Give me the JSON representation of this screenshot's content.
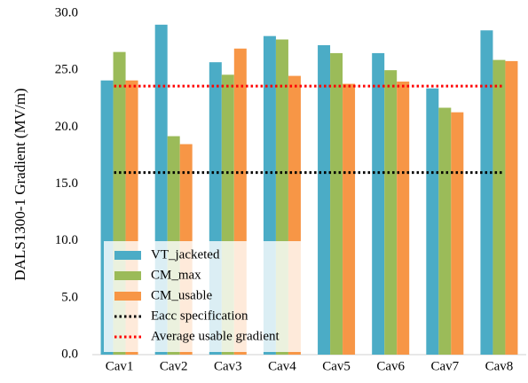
{
  "chart_data": {
    "type": "bar",
    "y_label": "DALS1300-1 Gradient (MV/m)",
    "categories": [
      "Cav1",
      "Cav2",
      "Cav3",
      "Cav4",
      "Cav5",
      "Cav6",
      "Cav7",
      "Cav8"
    ],
    "series": [
      {
        "name": "VT_jacketed",
        "color": "#4bacc6",
        "values": [
          24.1,
          29.0,
          25.7,
          28.0,
          27.2,
          26.5,
          23.4,
          28.5
        ]
      },
      {
        "name": "CM_max",
        "color": "#9bbb59",
        "values": [
          26.6,
          19.2,
          24.6,
          27.7,
          26.5,
          25.0,
          21.7,
          25.9
        ]
      },
      {
        "name": "CM_usable",
        "color": "#f79646",
        "values": [
          24.1,
          18.5,
          26.9,
          24.5,
          23.8,
          24.0,
          21.3,
          25.8
        ]
      }
    ],
    "reference_lines": [
      {
        "name": "Eacc specification",
        "value": 16.0,
        "color": "#000000"
      },
      {
        "name": "Average usable gradient",
        "value": 23.6,
        "color": "#ff0000"
      }
    ],
    "ylim": [
      0,
      30
    ],
    "yticks": [
      {
        "value": 0,
        "label": "0.0"
      },
      {
        "value": 5,
        "label": "5.0"
      },
      {
        "value": 10,
        "label": "10.0"
      },
      {
        "value": 15,
        "label": "15.0"
      },
      {
        "value": 20,
        "label": "20.0"
      },
      {
        "value": 25,
        "label": "25.0"
      },
      {
        "value": 30,
        "label": "30.0"
      }
    ],
    "grid": false,
    "legend": "lower left"
  }
}
